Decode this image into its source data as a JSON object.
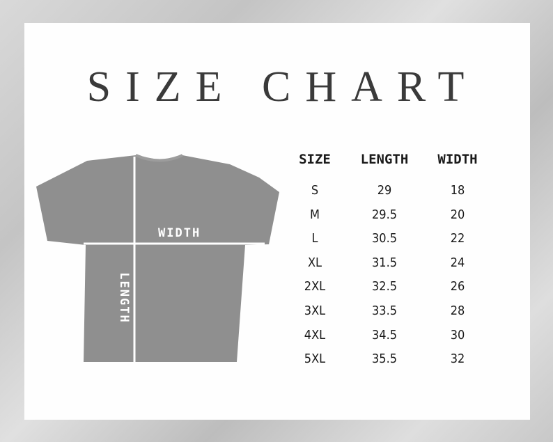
{
  "title": "SIZE CHART",
  "diagram": {
    "width_label": "WIDTH",
    "length_label": "LENGTH",
    "shirt_color": "#8f8f8f"
  },
  "table": {
    "headers": [
      "SIZE",
      "LENGTH",
      "WIDTH"
    ],
    "rows": [
      [
        "S",
        "29",
        "18"
      ],
      [
        "M",
        "29.5",
        "20"
      ],
      [
        "L",
        "30.5",
        "22"
      ],
      [
        "XL",
        "31.5",
        "24"
      ],
      [
        "2XL",
        "32.5",
        "26"
      ],
      [
        "3XL",
        "33.5",
        "28"
      ],
      [
        "4XL",
        "34.5",
        "30"
      ],
      [
        "5XL",
        "35.5",
        "32"
      ]
    ]
  }
}
